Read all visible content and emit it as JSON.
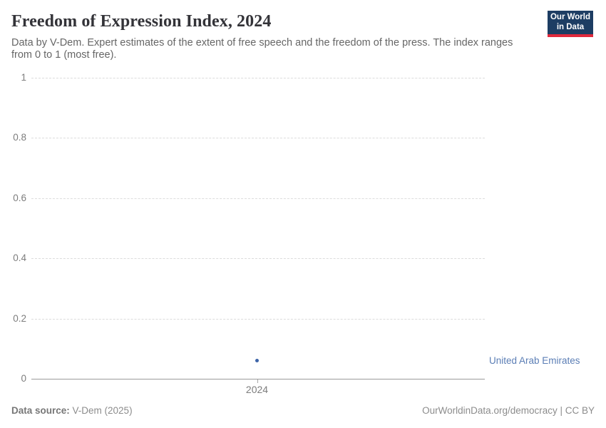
{
  "header": {
    "title": "Freedom of Expression Index, 2024",
    "subtitle": "Data by V-Dem. Expert estimates of the extent of free speech and the freedom of the press. The index ranges from 0 to 1 (most free).",
    "logo": {
      "line1": "Our World",
      "line2": "in Data",
      "bg_color": "#1d3d63",
      "accent_color": "#e0293c"
    }
  },
  "chart": {
    "entity_label": "United Arab Emirates",
    "point_color": "#3d64a8",
    "entity_label_color": "#5b7eb5",
    "gridline_color": "#dcdcdc",
    "axis_color": "#9a9a9a"
  },
  "chart_data": {
    "type": "scatter",
    "title": "Freedom of Expression Index, 2024",
    "subtitle": "Data by V-Dem. Expert estimates of the extent of free speech and the freedom of the press. The index ranges from 0 to 1 (most free).",
    "series": [
      {
        "name": "United Arab Emirates",
        "x": [
          2024
        ],
        "values": [
          0.06
        ]
      }
    ],
    "xlabel": "",
    "ylabel": "",
    "ylim": [
      0,
      1
    ],
    "yticks": [
      1,
      0.8,
      0.6,
      0.4,
      0.2,
      0
    ],
    "ytick_labels": [
      "1",
      "0.8",
      "0.6",
      "0.4",
      "0.2",
      "0"
    ],
    "xticks": [
      2024
    ],
    "xtick_labels": [
      "2024"
    ],
    "grid": "horizontal-dashed",
    "legend_position": "right-of-plot-entity-label"
  },
  "footer": {
    "source_label": "Data source:",
    "source_value": " V-Dem (2025)",
    "credit": "OurWorldinData.org/democracy | CC BY"
  }
}
